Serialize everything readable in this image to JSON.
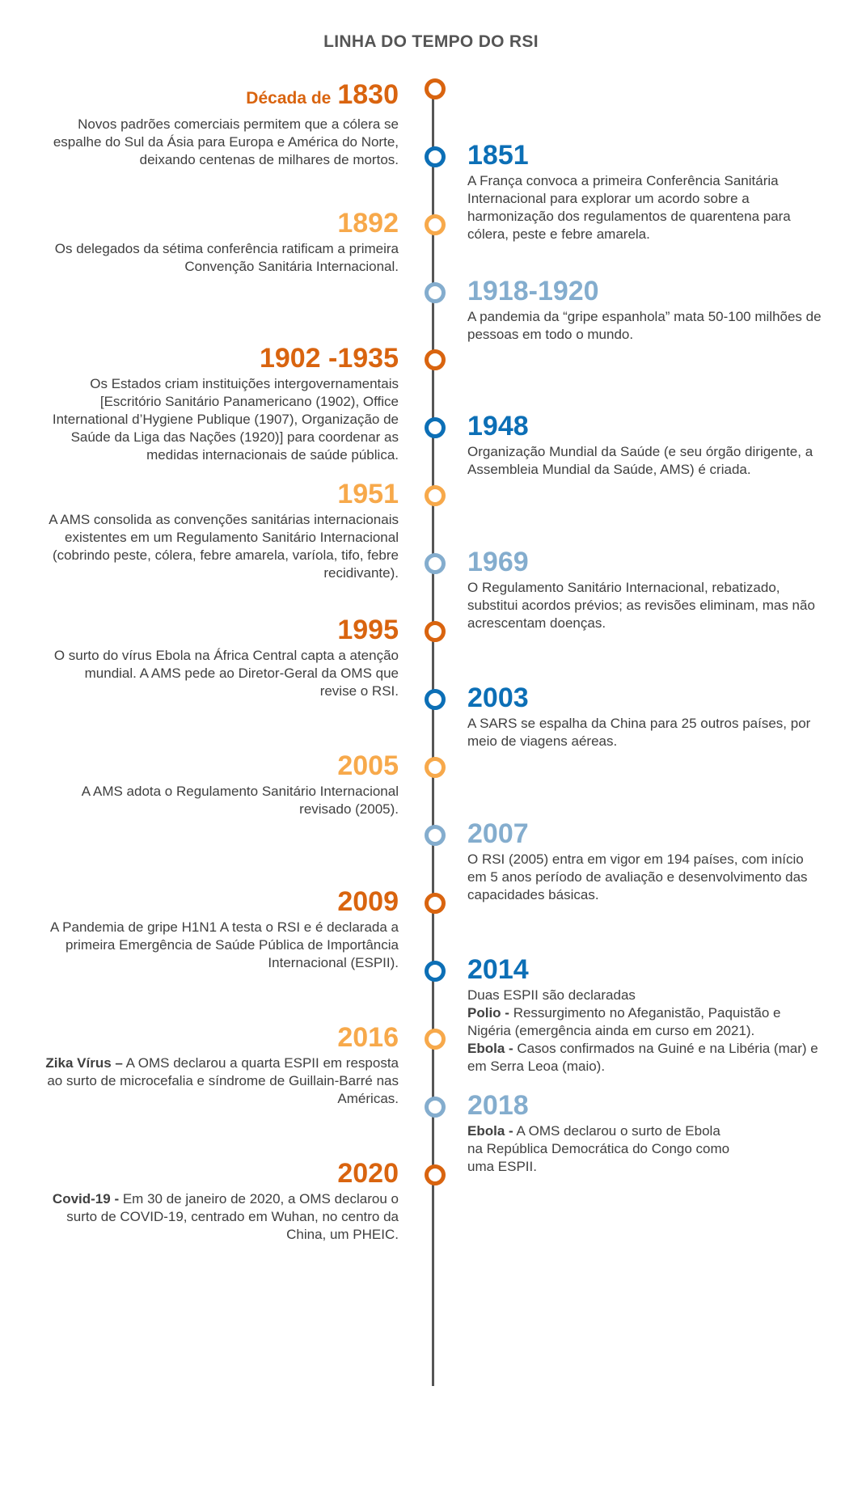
{
  "title": "LINHA DO TEMPO DO RSI",
  "colors": {
    "dark_orange": "#D9640F",
    "light_orange": "#F7A94B",
    "dark_blue": "#0C6FB6",
    "light_blue": "#84ADCE",
    "axis": "#555555"
  },
  "events": [
    {
      "prefix": "Década de",
      "year": "1830",
      "desc": "Novos padrões comerciais permitem que a cólera se espalhe do Sul da Ásia para Europa e América do Norte, deixando centenas de milhares de mortos."
    },
    {
      "year": "1851",
      "desc": "A França convoca a primeira Conferência Sanitária Internacional para explorar um acordo sobre a harmonização dos regulamentos de quarentena para cólera, peste e febre amarela."
    },
    {
      "year": "1892",
      "desc": "Os delegados da sétima conferência ratificam a primeira Convenção Sanitária Internacional."
    },
    {
      "year": "1918-1920",
      "desc": "A pandemia da “gripe espanhola” mata 50-100 milhões de pessoas em todo o mundo."
    },
    {
      "year": "1902 -1935",
      "desc": "Os Estados criam instituições intergovernamentais [Escritório Sanitário Panamericano (1902), Office International d’Hygiene Publique (1907), Organização de Saúde da Liga das Nações (1920)] para coordenar as medidas internacionais de saúde pública."
    },
    {
      "year": "1948",
      "desc": "Organização Mundial da Saúde (e seu órgão dirigente, a Assembleia Mundial da Saúde, AMS) é criada."
    },
    {
      "year": "1951",
      "desc": "A AMS consolida as convenções sanitárias internacionais existentes em um Regulamento Sanitário Internacional (cobrindo peste, cólera, febre amarela, varíola, tifo, febre recidivante)."
    },
    {
      "year": "1969",
      "desc": "O Regulamento Sanitário Internacional, rebatizado, substitui acordos prévios; as revisões eliminam, mas não acrescentam doenças."
    },
    {
      "year": "1995",
      "desc": "O surto do vírus Ebola na África Central capta a atenção mundial.  A AMS pede ao Diretor-Geral da OMS que revise o RSI."
    },
    {
      "year": "2003",
      "desc": "A SARS se espalha da China para 25 outros países, por meio de viagens aéreas."
    },
    {
      "year": "2005",
      "desc": "A AMS adota o Regulamento Sanitário Internacional revisado (2005)."
    },
    {
      "year": "2007",
      "desc": "O RSI (2005) entra em vigor em 194 países, com início em 5 anos período de avaliação e desenvolvimento das capacidades básicas."
    },
    {
      "year": "2009",
      "desc": "A Pandemia de gripe H1N1 A testa o RSI e é declarada a primeira Emergência de Saúde Pública de Importância Internacional (ESPII)."
    },
    {
      "year": "2014",
      "intro": "Duas ESPII são declaradas",
      "polio_label": "Polio -",
      "polio_text": "Ressurgimento no Afeganistão, Paquistão e Nigéria (emergência ainda em curso em 2021).",
      "ebola_label": "Ebola -",
      "ebola_text": "Casos confirmados na Guiné e na Libéria (mar) e em Serra Leoa (maio)."
    },
    {
      "year": "2016",
      "label": "Zika Vírus –",
      "desc": "A OMS declarou a quarta ESPII em resposta ao surto de microcefalia e síndrome de Guillain-Barré nas Américas."
    },
    {
      "year": "2018",
      "label": "Ebola -",
      "desc": " A OMS declarou o surto de Ebola na República Democrática do Congo como uma ESPII."
    },
    {
      "year": "2020",
      "label": "Covid-19 -",
      "desc": "Em 30 de janeiro de 2020, a OMS declarou o surto de COVID-19, centrado em Wuhan, no centro da China, um PHEIC."
    }
  ]
}
